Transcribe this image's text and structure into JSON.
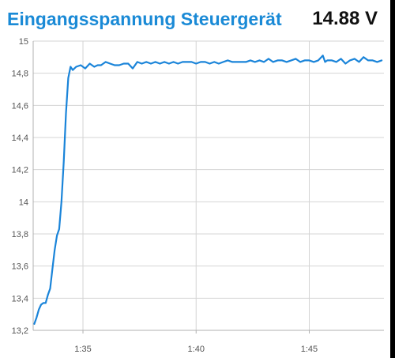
{
  "header": {
    "title": "Eingangsspannung Steuergerät",
    "current_value": "14.88 V"
  },
  "colors": {
    "accent": "#1a8ad6",
    "line": "#1a84d9",
    "grid": "#d4d4d4",
    "axis": "#b0b0b0"
  },
  "chart_data": {
    "type": "line",
    "title": "Eingangsspannung Steuergerät",
    "xlabel": "",
    "ylabel": "",
    "grid": true,
    "legend": "none",
    "xlim": [
      0,
      15.5
    ],
    "ylim": [
      13.2,
      15.0
    ],
    "y_ticks": [
      {
        "value": 15.0,
        "label": "15"
      },
      {
        "value": 14.8,
        "label": "14,8"
      },
      {
        "value": 14.6,
        "label": "14,6"
      },
      {
        "value": 14.4,
        "label": "14,4"
      },
      {
        "value": 14.2,
        "label": "14,2"
      },
      {
        "value": 14.0,
        "label": "14"
      },
      {
        "value": 13.8,
        "label": "13,8"
      },
      {
        "value": 13.6,
        "label": "13,6"
      },
      {
        "value": 13.4,
        "label": "13,4"
      },
      {
        "value": 13.2,
        "label": "13,2"
      }
    ],
    "x_ticks": [
      {
        "value": 2.2,
        "label": "1:35"
      },
      {
        "value": 7.2,
        "label": "1:40"
      },
      {
        "value": 12.2,
        "label": "1:45"
      }
    ],
    "series": [
      {
        "values": [
          [
            0.05,
            13.24
          ],
          [
            0.15,
            13.28
          ],
          [
            0.25,
            13.33
          ],
          [
            0.35,
            13.36
          ],
          [
            0.45,
            13.37
          ],
          [
            0.55,
            13.37
          ],
          [
            0.65,
            13.42
          ],
          [
            0.75,
            13.46
          ],
          [
            0.85,
            13.58
          ],
          [
            0.95,
            13.7
          ],
          [
            1.05,
            13.79
          ],
          [
            1.15,
            13.83
          ],
          [
            1.25,
            14.0
          ],
          [
            1.35,
            14.25
          ],
          [
            1.45,
            14.55
          ],
          [
            1.55,
            14.77
          ],
          [
            1.65,
            14.84
          ],
          [
            1.75,
            14.82
          ],
          [
            1.9,
            14.84
          ],
          [
            2.1,
            14.85
          ],
          [
            2.3,
            14.83
          ],
          [
            2.5,
            14.86
          ],
          [
            2.7,
            14.84
          ],
          [
            2.85,
            14.85
          ],
          [
            3.0,
            14.85
          ],
          [
            3.2,
            14.87
          ],
          [
            3.4,
            14.86
          ],
          [
            3.6,
            14.85
          ],
          [
            3.8,
            14.85
          ],
          [
            4.0,
            14.86
          ],
          [
            4.2,
            14.86
          ],
          [
            4.4,
            14.83
          ],
          [
            4.6,
            14.87
          ],
          [
            4.8,
            14.86
          ],
          [
            5.0,
            14.87
          ],
          [
            5.2,
            14.86
          ],
          [
            5.4,
            14.87
          ],
          [
            5.6,
            14.86
          ],
          [
            5.8,
            14.87
          ],
          [
            6.0,
            14.86
          ],
          [
            6.2,
            14.87
          ],
          [
            6.4,
            14.86
          ],
          [
            6.6,
            14.87
          ],
          [
            6.8,
            14.87
          ],
          [
            7.0,
            14.87
          ],
          [
            7.2,
            14.86
          ],
          [
            7.4,
            14.87
          ],
          [
            7.6,
            14.87
          ],
          [
            7.8,
            14.86
          ],
          [
            8.0,
            14.87
          ],
          [
            8.2,
            14.86
          ],
          [
            8.4,
            14.87
          ],
          [
            8.6,
            14.88
          ],
          [
            8.8,
            14.87
          ],
          [
            9.0,
            14.87
          ],
          [
            9.2,
            14.87
          ],
          [
            9.4,
            14.87
          ],
          [
            9.6,
            14.88
          ],
          [
            9.8,
            14.87
          ],
          [
            10.0,
            14.88
          ],
          [
            10.2,
            14.87
          ],
          [
            10.4,
            14.89
          ],
          [
            10.6,
            14.87
          ],
          [
            10.8,
            14.88
          ],
          [
            11.0,
            14.88
          ],
          [
            11.2,
            14.87
          ],
          [
            11.4,
            14.88
          ],
          [
            11.6,
            14.89
          ],
          [
            11.8,
            14.87
          ],
          [
            12.0,
            14.88
          ],
          [
            12.2,
            14.88
          ],
          [
            12.4,
            14.87
          ],
          [
            12.6,
            14.88
          ],
          [
            12.8,
            14.91
          ],
          [
            12.9,
            14.87
          ],
          [
            13.0,
            14.88
          ],
          [
            13.2,
            14.88
          ],
          [
            13.4,
            14.87
          ],
          [
            13.6,
            14.89
          ],
          [
            13.8,
            14.86
          ],
          [
            14.0,
            14.88
          ],
          [
            14.2,
            14.89
          ],
          [
            14.4,
            14.87
          ],
          [
            14.6,
            14.9
          ],
          [
            14.8,
            14.88
          ],
          [
            15.0,
            14.88
          ],
          [
            15.2,
            14.87
          ],
          [
            15.4,
            14.88
          ]
        ]
      }
    ]
  }
}
